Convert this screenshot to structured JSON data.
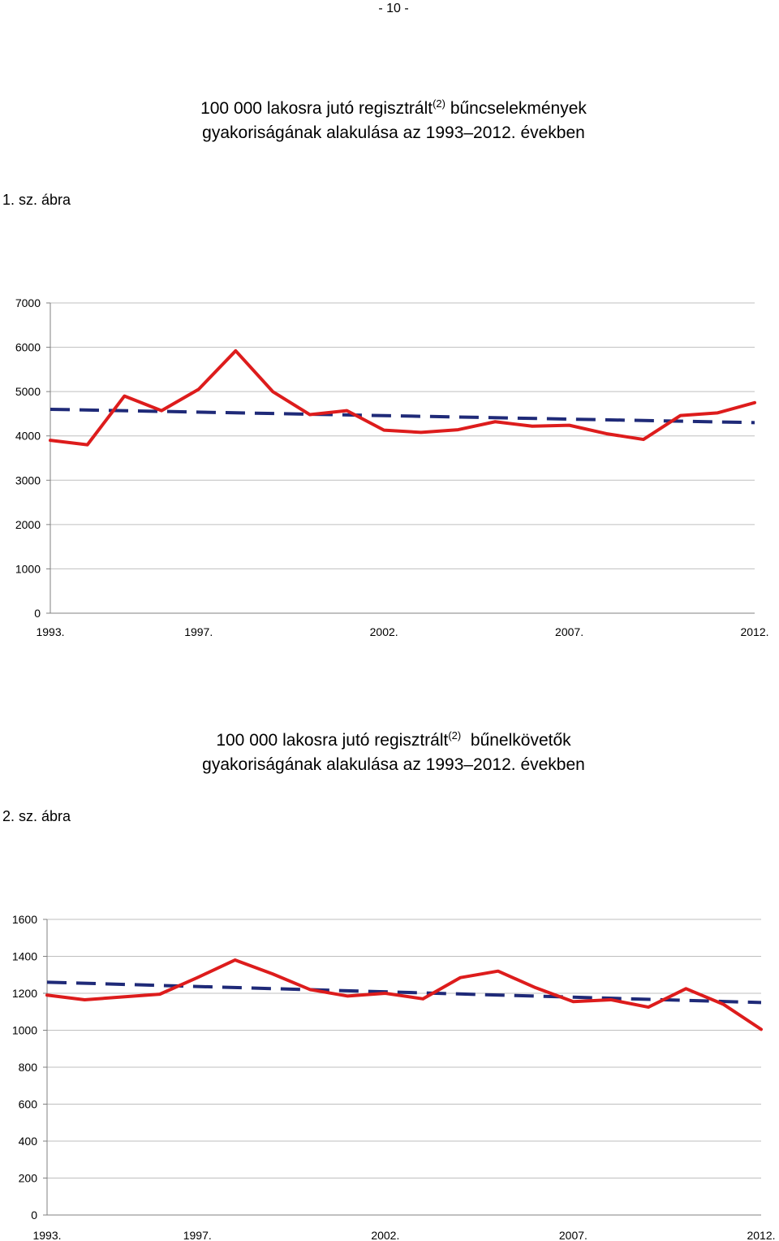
{
  "page": {
    "number": "- 10 -"
  },
  "charts": [
    {
      "title_line1_prefix": "100 000 lakosra jutó regisztrált",
      "title_sup": "(2)",
      "title_line1_suffix": "bűncselekmények",
      "title_line2": "gyakoriságának alakulása az 1993–2012. években",
      "figure_label": "1. sz. ábra"
    },
    {
      "title_line1_prefix": "100 000 lakosra jutó regisztrált",
      "title_sup": "(2)",
      "title_line1_suffix": "bűnelkövetők",
      "title_line2": "gyakoriságának alakulása az 1993–2012. években",
      "figure_label": "2. sz. ábra"
    }
  ],
  "colors": {
    "series": "#dd1c1c",
    "trend": "#1f2a78",
    "grid": "#bfbfbf"
  },
  "chart_data": [
    {
      "type": "line",
      "x": [
        1993,
        1994,
        1995,
        1996,
        1997,
        1998,
        1999,
        2000,
        2001,
        2002,
        2003,
        2004,
        2005,
        2006,
        2007,
        2008,
        2009,
        2010,
        2011,
        2012
      ],
      "xticks": [
        "1993.",
        "1997.",
        "2002.",
        "2007.",
        "2012."
      ],
      "xtick_positions": [
        1993,
        1997,
        2002,
        2007,
        2012
      ],
      "ylim": [
        0,
        7000
      ],
      "yticks": [
        "0",
        "1000",
        "2000",
        "3000",
        "4000",
        "5000",
        "6000",
        "7000"
      ],
      "grid": true,
      "series": [
        {
          "values": [
            3900,
            3800,
            4900,
            4570,
            5050,
            5920,
            5000,
            4480,
            4570,
            4130,
            4080,
            4140,
            4320,
            4220,
            4240,
            4050,
            3920,
            4460,
            4520,
            4750
          ]
        }
      ],
      "trendline": {
        "start": 4600,
        "end": 4300,
        "style": "dashed"
      }
    },
    {
      "type": "line",
      "x": [
        1993,
        1994,
        1995,
        1996,
        1997,
        1998,
        1999,
        2000,
        2001,
        2002,
        2003,
        2004,
        2005,
        2006,
        2007,
        2008,
        2009,
        2010,
        2011,
        2012
      ],
      "xticks": [
        "1993.",
        "1997.",
        "2002.",
        "2007.",
        "2012."
      ],
      "xtick_positions": [
        1993,
        1997,
        2002,
        2007,
        2012
      ],
      "ylim": [
        0,
        1600
      ],
      "yticks": [
        "0",
        "200",
        "400",
        "600",
        "800",
        "1000",
        "1200",
        "1400",
        "1600"
      ],
      "grid": true,
      "series": [
        {
          "values": [
            1190,
            1165,
            1180,
            1195,
            1285,
            1380,
            1305,
            1220,
            1185,
            1200,
            1170,
            1285,
            1320,
            1230,
            1155,
            1165,
            1125,
            1225,
            1140,
            1005
          ]
        }
      ],
      "trendline": {
        "start": 1260,
        "end": 1150,
        "style": "dashed"
      }
    }
  ]
}
